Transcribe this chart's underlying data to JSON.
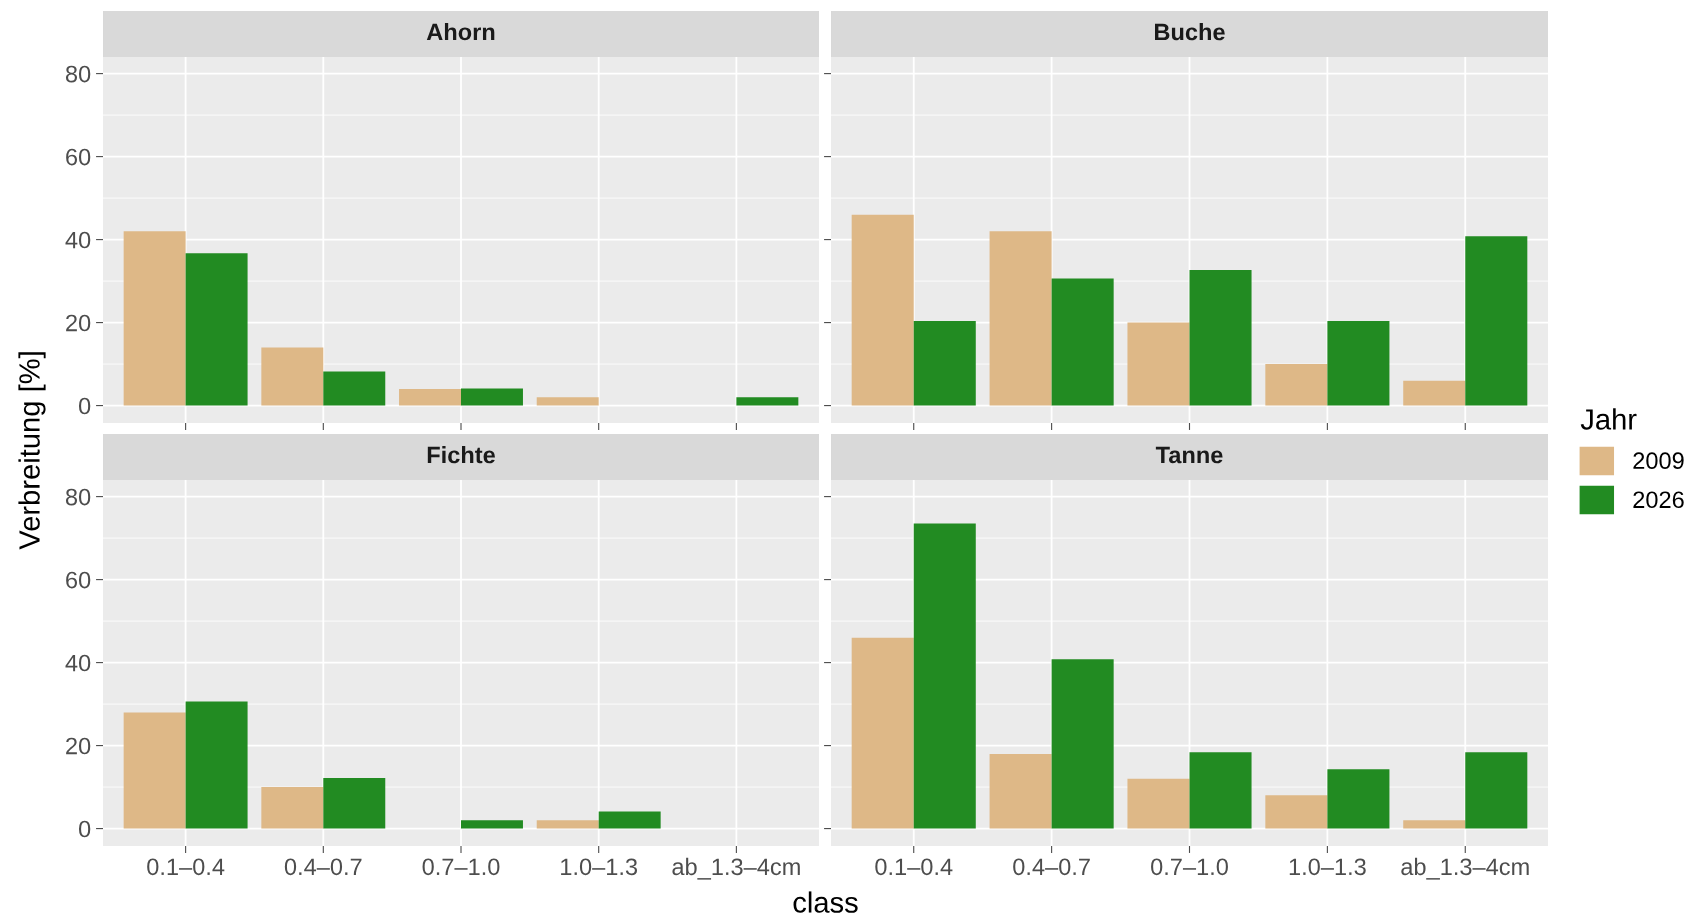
{
  "chart_data": [
    {
      "type": "bar",
      "title": "Ahorn",
      "ylabel": "Verbreitung [%]",
      "legend_title": "Jahr",
      "legend": "right",
      "categories": [
        "0.1–0.4",
        "0.4–0.7",
        "0.7–1.0",
        "1.0–1.3",
        "ab_1.3–4cm"
      ],
      "series": [
        {
          "name": "2009",
          "color": "#deb887",
          "values": [
            42,
            14,
            4,
            2,
            0
          ]
        },
        {
          "name": "2026",
          "color": "#228b22",
          "values": [
            36.7,
            8.2,
            4.1,
            0,
            2.0
          ]
        }
      ],
      "ylim": [
        -4.2,
        84
      ],
      "yticks": [
        0,
        20,
        40,
        60,
        80
      ],
      "grid": true,
      "tick_labels": "y"
    },
    {
      "type": "bar",
      "title": "Buche",
      "categories": [
        "0.1–0.4",
        "0.4–0.7",
        "0.7–1.0",
        "1.0–1.3",
        "ab_1.3–4cm"
      ],
      "series": [
        {
          "name": "2009",
          "color": "#deb887",
          "values": [
            46,
            42,
            20,
            10,
            6
          ]
        },
        {
          "name": "2026",
          "color": "#228b22",
          "values": [
            20.4,
            30.6,
            32.7,
            20.4,
            40.8
          ]
        }
      ],
      "ylim": [
        -4.2,
        84
      ],
      "yticks": [
        0,
        20,
        40,
        60,
        80
      ],
      "grid": true,
      "tick_labels": false
    },
    {
      "type": "bar",
      "title": "Fichte",
      "xlabel": "class",
      "categories": [
        "0.1–0.4",
        "0.4–0.7",
        "0.7–1.0",
        "1.0–1.3",
        "ab_1.3–4cm"
      ],
      "series": [
        {
          "name": "2009",
          "color": "#deb887",
          "values": [
            28,
            10,
            0,
            2,
            0
          ]
        },
        {
          "name": "2026",
          "color": "#228b22",
          "values": [
            30.6,
            12.2,
            2.0,
            4.1,
            0
          ]
        }
      ],
      "ylim": [
        -4.2,
        84
      ],
      "yticks": [
        0,
        20,
        40,
        60,
        80
      ],
      "grid": true
    },
    {
      "type": "bar",
      "title": "Tanne",
      "categories": [
        "0.1–0.4",
        "0.4–0.7",
        "0.7–1.0",
        "1.0–1.3",
        "ab_1.3–4cm"
      ],
      "series": [
        {
          "name": "2009",
          "color": "#deb887",
          "values": [
            46,
            18,
            12,
            8,
            2
          ]
        },
        {
          "name": "2026",
          "color": "#228b22",
          "values": [
            73.5,
            40.8,
            18.4,
            14.3,
            18.4
          ]
        }
      ],
      "ylim": [
        -4.2,
        84
      ],
      "yticks": [
        0,
        20,
        40,
        60,
        80
      ],
      "grid": true,
      "tick_labels": "x"
    }
  ]
}
